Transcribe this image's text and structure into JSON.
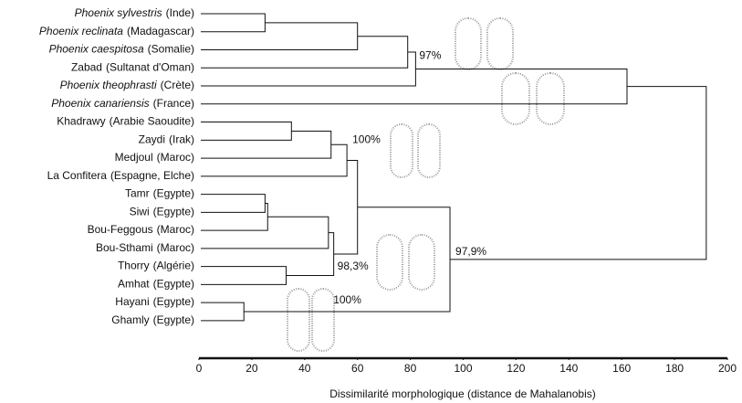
{
  "chart_data": {
    "type": "dendrogram",
    "x_label": "Dissimilarité morphologique (distance de Mahalanobis)",
    "xlim": [
      0,
      200
    ],
    "xticks": [
      0,
      20,
      40,
      60,
      80,
      100,
      120,
      140,
      160,
      180,
      200
    ],
    "leaves": [
      {
        "name": "Phoenix sylvestris",
        "origin": "(Inde)",
        "italic": true
      },
      {
        "name": "Phoenix reclinata",
        "origin": "(Madagascar)",
        "italic": true
      },
      {
        "name": "Phoenix caespitosa",
        "origin": "(Somalie)",
        "italic": true
      },
      {
        "name": "Zabad",
        "origin": "(Sultanat d'Oman)",
        "italic": false
      },
      {
        "name": "Phoenix theophrasti",
        "origin": "(Crète)",
        "italic": true
      },
      {
        "name": "Phoenix canariensis",
        "origin": "(France)",
        "italic": true
      },
      {
        "name": "Khadrawy",
        "origin": "(Arabie Saoudite)",
        "italic": false
      },
      {
        "name": "Zaydi",
        "origin": "(Irak)",
        "italic": false
      },
      {
        "name": "Medjoul",
        "origin": "(Maroc)",
        "italic": false
      },
      {
        "name": "La Confitera",
        "origin": "(Espagne, Elche)",
        "italic": false
      },
      {
        "name": "Tamr",
        "origin": "(Egypte)",
        "italic": false
      },
      {
        "name": "Siwi",
        "origin": "(Egypte)",
        "italic": false
      },
      {
        "name": "Bou-Feggous",
        "origin": "(Maroc)",
        "italic": false
      },
      {
        "name": "Bou-Sthami",
        "origin": "(Maroc)",
        "italic": false
      },
      {
        "name": "Thorry",
        "origin": "(Algérie)",
        "italic": false
      },
      {
        "name": "Amhat",
        "origin": "(Egypte)",
        "italic": false
      },
      {
        "name": "Hayani",
        "origin": "(Egypte)",
        "italic": false
      },
      {
        "name": "Ghamly",
        "origin": "(Egypte)",
        "italic": false
      }
    ],
    "merges": [
      {
        "left": 0,
        "right": 1,
        "height": 25
      },
      {
        "left": 18,
        "right": 2,
        "height": 60
      },
      {
        "left": 19,
        "right": 3,
        "height": 79
      },
      {
        "left": 20,
        "right": 4,
        "height": 82
      },
      {
        "left": 21,
        "right": 5,
        "height": 162
      },
      {
        "left": 6,
        "right": 7,
        "height": 35
      },
      {
        "left": 23,
        "right": 8,
        "height": 50
      },
      {
        "left": 24,
        "right": 9,
        "height": 56
      },
      {
        "left": 10,
        "right": 11,
        "height": 25
      },
      {
        "left": 26,
        "right": 12,
        "height": 26
      },
      {
        "left": 27,
        "right": 13,
        "height": 49
      },
      {
        "left": 14,
        "right": 15,
        "height": 33
      },
      {
        "left": 28,
        "right": 29,
        "height": 51
      },
      {
        "left": 25,
        "right": 30,
        "height": 60
      },
      {
        "left": 16,
        "right": 17,
        "height": 17
      },
      {
        "left": 31,
        "right": 32,
        "height": 95
      },
      {
        "left": 22,
        "right": 33,
        "height": 192
      }
    ],
    "annotations": [
      "97%",
      "100%",
      "98,3%",
      "97,9%",
      "100%"
    ]
  }
}
